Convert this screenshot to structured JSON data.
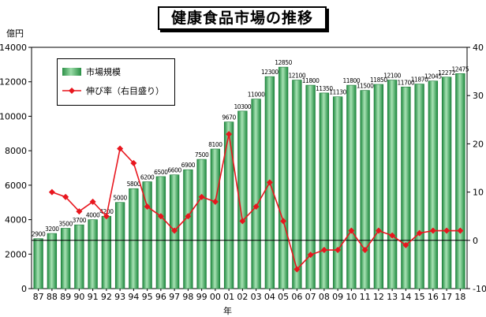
{
  "chart_data": {
    "type": "bar",
    "title": "健康食品市場の推移",
    "y_left_unit": "億円",
    "x_unit": "年",
    "categories": [
      "87",
      "88",
      "89",
      "90",
      "91",
      "92",
      "93",
      "94",
      "95",
      "96",
      "97",
      "98",
      "99",
      "00",
      "01",
      "02",
      "03",
      "04",
      "05",
      "06",
      "07",
      "08",
      "09",
      "10",
      "11",
      "12",
      "13",
      "14",
      "15",
      "16",
      "17",
      "18"
    ],
    "series": [
      {
        "name": "市場規模",
        "axis": "left",
        "type": "bar",
        "values": [
          2900,
          3200,
          3500,
          3700,
          4000,
          4200,
          5000,
          5800,
          6200,
          6500,
          6600,
          6900,
          7500,
          8100,
          9670,
          10300,
          11000,
          12300,
          12850,
          12100,
          11800,
          11350,
          11130,
          11800,
          11500,
          11850,
          12100,
          11700,
          11870,
          12045,
          12272,
          12475
        ],
        "value_labels": [
          "2900",
          "3200",
          "3500",
          "3700",
          "4000",
          "4200",
          "5000",
          "5800",
          "6200",
          "6500",
          "6600",
          "6900",
          "7500",
          "8100",
          "9670",
          "10300",
          "11000",
          "12300",
          "12850",
          "12100",
          "11800",
          "11350",
          "11130",
          "11800",
          "11500",
          "11850",
          "12100",
          "11700",
          "11870",
          "12045",
          "12272",
          "12475"
        ],
        "color": "#3caa5a"
      },
      {
        "name": "伸び率（右目盛り）",
        "axis": "right",
        "type": "line",
        "values": [
          null,
          10,
          9,
          6,
          8,
          5,
          19,
          16,
          7,
          5,
          2,
          5,
          9,
          8,
          22,
          4,
          7,
          12,
          4,
          -6,
          -3,
          -2,
          -2,
          2,
          -2,
          2,
          1,
          -1,
          1.5,
          2,
          2,
          2
        ],
        "color": "#e8161e"
      }
    ],
    "y_left": {
      "min": 0,
      "max": 14000,
      "ticks": [
        0,
        2000,
        4000,
        6000,
        8000,
        10000,
        12000,
        14000
      ]
    },
    "y_right": {
      "min": -10,
      "max": 40,
      "ticks": [
        -10,
        0,
        10,
        20,
        30,
        40
      ]
    },
    "grid": false
  }
}
